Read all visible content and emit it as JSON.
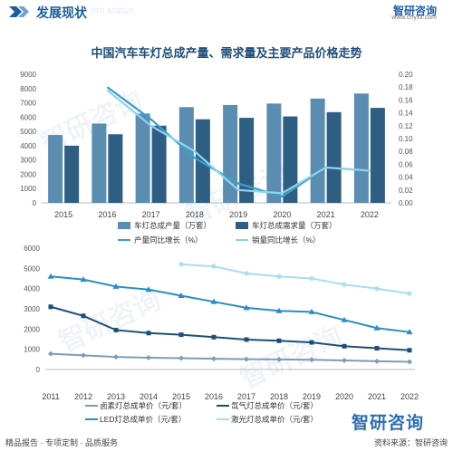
{
  "header": {
    "title": "发展现状",
    "subtitle": "ent status",
    "logo": "智研咨询",
    "url": "www.chyxx.com"
  },
  "chart_title": "中国汽车车灯总成产量、需求量及主要产品价格走势",
  "footer": {
    "left": "精品报告 · 专项定制 · 品质服务",
    "right": "资料来源：智研咨询",
    "brand": "智研咨询"
  },
  "watermark": "智研咨询",
  "colors": {
    "bar1": "#5b8db0",
    "bar2": "#2e5f82",
    "line1": "#3a9fc9",
    "line2": "#8dd3ee",
    "dark": "#1c4f78",
    "halogen": "#7a9db8",
    "led": "#2a8ec2",
    "laser": "#a9dcf2"
  },
  "chart_data": [
    {
      "type": "bar",
      "categories": [
        "2015",
        "2016",
        "2017",
        "2018",
        "2019",
        "2020",
        "2021",
        "2022"
      ],
      "ylim": [
        0,
        9000
      ],
      "y2lim": [
        0,
        0.2
      ],
      "yticks": [
        "0",
        "1000",
        "2000",
        "3000",
        "4000",
        "5000",
        "6000",
        "7000",
        "8000",
        "9000"
      ],
      "y2ticks": [
        "0.00",
        "0.02",
        "0.04",
        "0.06",
        "0.08",
        "0.10",
        "0.12",
        "0.14",
        "0.16",
        "0.18",
        "0.20"
      ],
      "series": [
        {
          "name": "车灯总成产量（万套）",
          "type": "bar",
          "values": [
            4750,
            5550,
            6250,
            6700,
            6850,
            6950,
            7300,
            7650
          ]
        },
        {
          "name": "车灯总成需求量（万套）",
          "type": "bar",
          "values": [
            4000,
            4800,
            5400,
            5850,
            5950,
            6050,
            6350,
            6650
          ]
        },
        {
          "name": "产量同比增长（%）",
          "type": "line",
          "axis": "right",
          "values": [
            null,
            0.18,
            0.13,
            0.07,
            0.03,
            0.01,
            0.055,
            0.05
          ]
        },
        {
          "name": "销量同比增长（%）",
          "type": "line",
          "axis": "right",
          "values": [
            null,
            0.175,
            0.12,
            0.08,
            0.02,
            0.015,
            0.055,
            0.05
          ]
        }
      ]
    },
    {
      "type": "line",
      "categories": [
        "2011",
        "2012",
        "2013",
        "2014",
        "2015",
        "2016",
        "2017",
        "2018",
        "2019",
        "2020",
        "2021",
        "2022"
      ],
      "ylim": [
        0,
        6000
      ],
      "yticks": [
        "0",
        "1000",
        "2000",
        "3000",
        "4000",
        "5000",
        "6000"
      ],
      "series": [
        {
          "name": "卤素灯总成单价（元/套）",
          "values": [
            780,
            700,
            620,
            580,
            560,
            530,
            510,
            500,
            480,
            450,
            410,
            380
          ]
        },
        {
          "name": "氙气灯总成单价（元/套）",
          "values": [
            3100,
            2650,
            1950,
            1800,
            1720,
            1600,
            1480,
            1420,
            1340,
            1150,
            1050,
            950
          ]
        },
        {
          "name": "LED灯总成单价（元/套）",
          "values": [
            4600,
            4450,
            4100,
            3950,
            3650,
            3350,
            3050,
            2900,
            2850,
            2450,
            2050,
            1850
          ]
        },
        {
          "name": "激光灯总成单价（元/套）",
          "values": [
            null,
            null,
            null,
            null,
            5200,
            5100,
            4750,
            4600,
            4500,
            4200,
            4000,
            3750
          ]
        }
      ]
    }
  ]
}
